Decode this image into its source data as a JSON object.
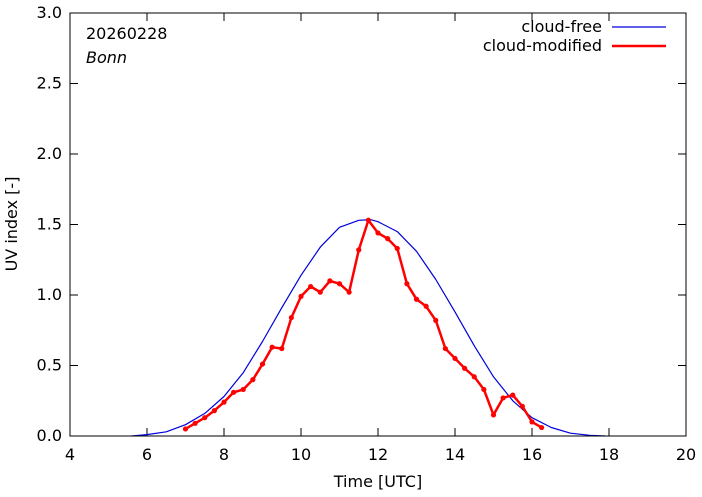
{
  "chart_data": {
    "type": "line",
    "title": "",
    "xlabel": "Time  [UTC]",
    "ylabel": "UV index  [-]",
    "xlim": [
      4,
      20
    ],
    "ylim": [
      0,
      3.0
    ],
    "x_ticks": [
      4,
      6,
      8,
      10,
      12,
      14,
      16,
      18,
      20
    ],
    "x_tick_labels": [
      "4",
      "6",
      "8",
      "10",
      "12",
      "14",
      "16",
      "18",
      "20"
    ],
    "y_ticks": [
      0,
      0.5,
      1.0,
      1.5,
      2.0,
      2.5,
      3.0
    ],
    "y_tick_labels": [
      "0.0",
      "0.5",
      "1.0",
      "1.5",
      "2.0",
      "2.5",
      "3.0"
    ],
    "annotations": {
      "date": "20260228",
      "location": "Bonn"
    },
    "legend_position": "top-right",
    "series": [
      {
        "name": "cloud-free",
        "color": "#0000dd",
        "style": "line",
        "x": [
          5.6,
          6.0,
          6.5,
          7.0,
          7.5,
          8.0,
          8.5,
          9.0,
          9.5,
          10.0,
          10.5,
          11.0,
          11.5,
          11.8,
          12.0,
          12.5,
          13.0,
          13.5,
          14.0,
          14.5,
          15.0,
          15.5,
          16.0,
          16.5,
          17.0,
          17.5,
          17.9
        ],
        "y": [
          0.0,
          0.01,
          0.03,
          0.08,
          0.16,
          0.28,
          0.45,
          0.67,
          0.91,
          1.14,
          1.34,
          1.48,
          1.53,
          1.535,
          1.52,
          1.45,
          1.31,
          1.11,
          0.88,
          0.64,
          0.42,
          0.25,
          0.13,
          0.06,
          0.02,
          0.005,
          0.0
        ]
      },
      {
        "name": "cloud-modified",
        "color": "#ff0000",
        "style": "line+markers",
        "x": [
          7.0,
          7.25,
          7.5,
          7.75,
          8.0,
          8.25,
          8.5,
          8.75,
          9.0,
          9.25,
          9.5,
          9.75,
          10.0,
          10.25,
          10.5,
          10.75,
          11.0,
          11.25,
          11.5,
          11.75,
          12.0,
          12.25,
          12.5,
          12.75,
          13.0,
          13.25,
          13.5,
          13.75,
          14.0,
          14.25,
          14.5,
          14.75,
          15.0,
          15.25,
          15.5,
          15.75,
          16.0,
          16.25
        ],
        "y": [
          0.05,
          0.09,
          0.13,
          0.18,
          0.24,
          0.31,
          0.33,
          0.4,
          0.51,
          0.63,
          0.62,
          0.84,
          0.99,
          1.06,
          1.02,
          1.1,
          1.08,
          1.02,
          1.32,
          1.53,
          1.44,
          1.4,
          1.33,
          1.08,
          0.97,
          0.92,
          0.82,
          0.62,
          0.55,
          0.48,
          0.42,
          0.33,
          0.15,
          0.27,
          0.29,
          0.21,
          0.1,
          0.06
        ]
      }
    ]
  }
}
